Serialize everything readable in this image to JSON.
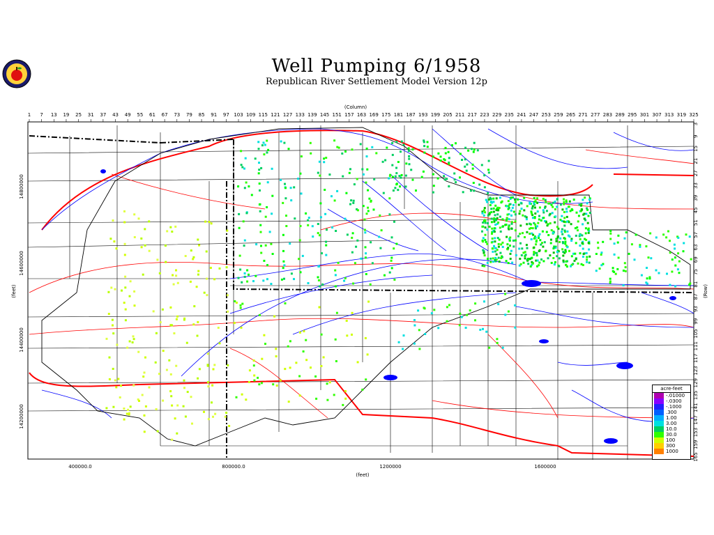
{
  "title": "Well Pumping  6/1958",
  "subtitle": "Republican River Settlement Model Version 12p",
  "top_axis": {
    "label": "(Column)",
    "ticks": [
      "1",
      "7",
      "13",
      "19",
      "25",
      "31",
      "37",
      "43",
      "49",
      "55",
      "61",
      "67",
      "73",
      "79",
      "85",
      "91",
      "97",
      "103",
      "109",
      "115",
      "121",
      "127",
      "133",
      "139",
      "145",
      "151",
      "157",
      "163",
      "169",
      "175",
      "181",
      "187",
      "193",
      "199",
      "205",
      "211",
      "217",
      "223",
      "229",
      "235",
      "241",
      "247",
      "253",
      "259",
      "265",
      "271",
      "277",
      "283",
      "289",
      "295",
      "301",
      "307",
      "313",
      "319",
      "325"
    ]
  },
  "right_axis": {
    "label": "(Row)",
    "ticks": [
      "3",
      "9",
      "15",
      "21",
      "27",
      "33",
      "39",
      "45",
      "51",
      "57",
      "63",
      "69",
      "75",
      "81",
      "87",
      "93",
      "99",
      "105",
      "111",
      "117",
      "123",
      "129",
      "135",
      "141",
      "147",
      "153",
      "159",
      "165"
    ]
  },
  "bottom_axis": {
    "label": "(feet)",
    "ticks": [
      "400000.0",
      "800000.0",
      "1200000",
      "1600000"
    ]
  },
  "left_axis": {
    "label": "(feet)",
    "ticks": [
      "14800000",
      "14600000",
      "14400000",
      "14200000"
    ]
  },
  "legend": {
    "title": "acre-feet",
    "items": [
      {
        "label": "-.01000",
        "color": "#b000b0"
      },
      {
        "label": "-.0300",
        "color": "#8a00ff"
      },
      {
        "label": "-.1000",
        "color": "#2020ff"
      },
      {
        "label": ".300",
        "color": "#0060ff"
      },
      {
        "label": "1.00",
        "color": "#00b0ff"
      },
      {
        "label": "3.00",
        "color": "#00e0e0"
      },
      {
        "label": "10.0",
        "color": "#00d060"
      },
      {
        "label": "30.0",
        "color": "#30ff00"
      },
      {
        "label": "100",
        "color": "#d0ff00"
      },
      {
        "label": "300",
        "color": "#ffd000"
      },
      {
        "label": "1000",
        "color": "#ff8000"
      }
    ]
  },
  "colors": {
    "rivers": "#0000ff",
    "roads": "#ff0000",
    "boundary": "#000000"
  }
}
